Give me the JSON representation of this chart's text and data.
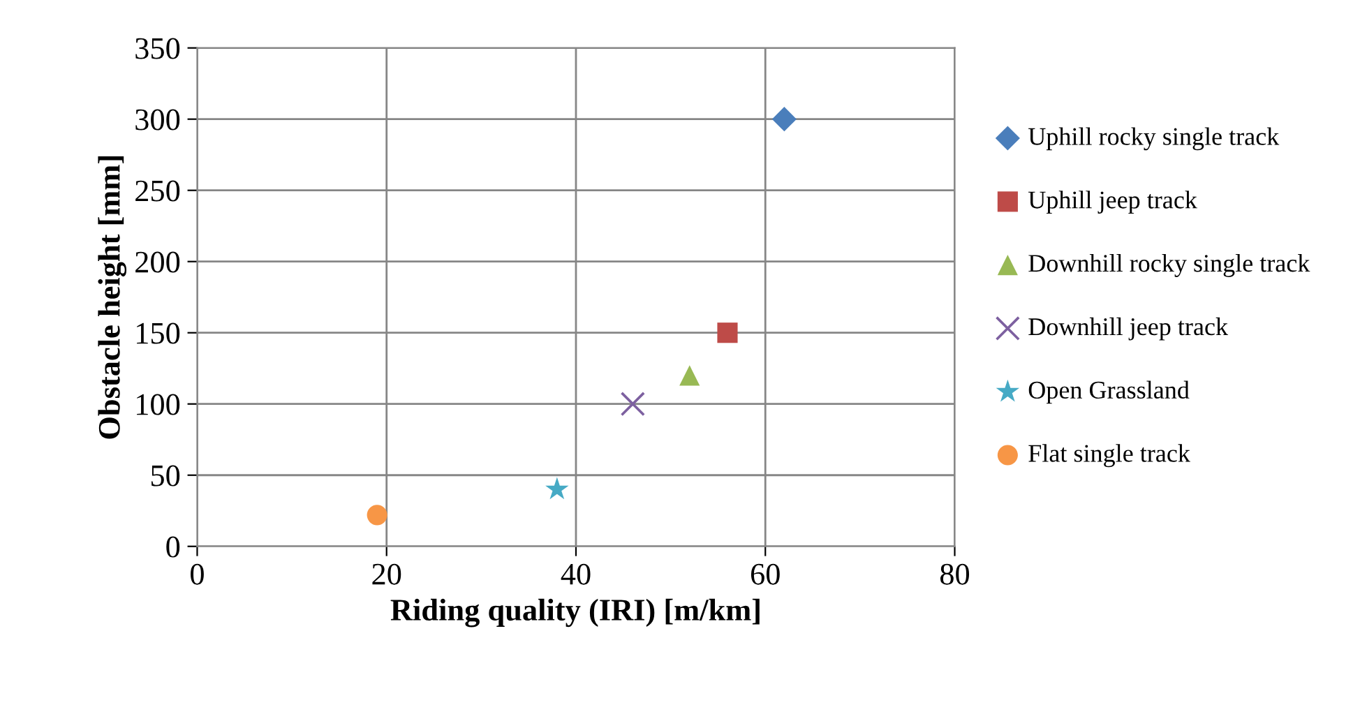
{
  "chart_data": {
    "type": "scatter",
    "xlabel": "Riding quality (IRI) [m/km]",
    "ylabel": "Obstacle height [mm]",
    "xlim": [
      0,
      80
    ],
    "xticks": [
      0,
      20,
      40,
      60,
      80
    ],
    "ylim": [
      0,
      350
    ],
    "yticks": [
      0,
      50,
      100,
      150,
      200,
      250,
      300,
      350
    ],
    "grid": true,
    "legend": "right",
    "series": [
      {
        "name": "Uphill rocky single track",
        "color": "#4a7ebb",
        "marker": "diamond",
        "x": [
          62
        ],
        "values": [
          300
        ]
      },
      {
        "name": "Uphill jeep track",
        "color": "#be4b48",
        "marker": "square",
        "x": [
          56
        ],
        "values": [
          150
        ]
      },
      {
        "name": "Downhill rocky single track",
        "color": "#98b954",
        "marker": "triangle",
        "x": [
          52
        ],
        "values": [
          120
        ]
      },
      {
        "name": "Downhill jeep track",
        "color": "#7d60a0",
        "marker": "cross",
        "x": [
          46
        ],
        "values": [
          100
        ]
      },
      {
        "name": "Open Grassland",
        "color": "#46aac5",
        "marker": "star",
        "x": [
          38
        ],
        "values": [
          40
        ]
      },
      {
        "name": "Flat single track",
        "color": "#f79646",
        "marker": "circle",
        "x": [
          19
        ],
        "values": [
          22
        ]
      }
    ]
  }
}
